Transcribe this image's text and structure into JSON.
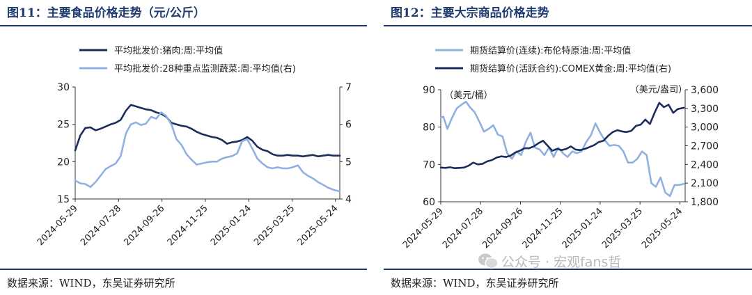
{
  "left": {
    "title": "图11：主要食品价格走势（元/公斤）",
    "source": "数据来源：WIND，东吴证券研究所",
    "chart_data": {
      "type": "line",
      "x_ticks": [
        "2024-05-29",
        "2024-07-28",
        "2024-09-26",
        "2024-11-25",
        "2025-01-24",
        "2025-03-25",
        "2025-05-24"
      ],
      "x_range": [
        "2024-05-29",
        "2025-05-30"
      ],
      "y_left": {
        "lim": [
          15,
          30
        ],
        "ticks": [
          "15",
          "20",
          "25",
          "30"
        ]
      },
      "y_right": {
        "lim": [
          4,
          7
        ],
        "ticks": [
          "4",
          "5",
          "6",
          "7"
        ]
      },
      "series": [
        {
          "name": "平均批发价:猪肉:周:平均值",
          "axis": "left",
          "color": "#1b2d5a",
          "points": [
            [
              "2024-05-29",
              21.5
            ],
            [
              "2024-06-05",
              23.5
            ],
            [
              "2024-06-12",
              24.5
            ],
            [
              "2024-06-19",
              24.6
            ],
            [
              "2024-06-26",
              24.2
            ],
            [
              "2024-07-03",
              24.4
            ],
            [
              "2024-07-10",
              24.7
            ],
            [
              "2024-07-17",
              25.0
            ],
            [
              "2024-07-24",
              25.2
            ],
            [
              "2024-07-31",
              25.6
            ],
            [
              "2024-08-07",
              26.8
            ],
            [
              "2024-08-14",
              27.6
            ],
            [
              "2024-08-21",
              27.4
            ],
            [
              "2024-08-28",
              27.2
            ],
            [
              "2024-09-04",
              27.0
            ],
            [
              "2024-09-11",
              26.9
            ],
            [
              "2024-09-18",
              26.6
            ],
            [
              "2024-09-25",
              26.4
            ],
            [
              "2024-10-02",
              26.0
            ],
            [
              "2024-10-09",
              25.2
            ],
            [
              "2024-10-16",
              25.0
            ],
            [
              "2024-10-23",
              24.8
            ],
            [
              "2024-10-30",
              24.7
            ],
            [
              "2024-11-06",
              24.4
            ],
            [
              "2024-11-13",
              24.0
            ],
            [
              "2024-11-20",
              23.7
            ],
            [
              "2024-11-27",
              23.5
            ],
            [
              "2024-12-04",
              23.3
            ],
            [
              "2024-12-11",
              23.2
            ],
            [
              "2024-12-18",
              22.9
            ],
            [
              "2024-12-25",
              22.4
            ],
            [
              "2025-01-01",
              22.6
            ],
            [
              "2025-01-08",
              22.7
            ],
            [
              "2025-01-15",
              22.9
            ],
            [
              "2025-01-22",
              23.3
            ],
            [
              "2025-01-29",
              22.8
            ],
            [
              "2025-02-05",
              22.0
            ],
            [
              "2025-02-12",
              21.6
            ],
            [
              "2025-02-19",
              21.4
            ],
            [
              "2025-02-26",
              21.0
            ],
            [
              "2025-03-05",
              20.8
            ],
            [
              "2025-03-12",
              20.8
            ],
            [
              "2025-03-19",
              20.9
            ],
            [
              "2025-03-26",
              20.8
            ],
            [
              "2025-04-02",
              20.8
            ],
            [
              "2025-04-09",
              20.7
            ],
            [
              "2025-04-16",
              20.8
            ],
            [
              "2025-04-23",
              20.9
            ],
            [
              "2025-04-30",
              20.7
            ],
            [
              "2025-05-07",
              20.8
            ],
            [
              "2025-05-14",
              20.9
            ],
            [
              "2025-05-21",
              20.8
            ],
            [
              "2025-05-30",
              20.8
            ]
          ]
        },
        {
          "name": "平均批发价:28种重点监测蔬菜:周:平均值(右)",
          "axis": "right",
          "color": "#8fb0e0",
          "points": [
            [
              "2024-05-29",
              4.5
            ],
            [
              "2024-06-05",
              4.42
            ],
            [
              "2024-06-12",
              4.4
            ],
            [
              "2024-06-19",
              4.32
            ],
            [
              "2024-06-26",
              4.45
            ],
            [
              "2024-07-03",
              4.62
            ],
            [
              "2024-07-10",
              4.8
            ],
            [
              "2024-07-17",
              4.88
            ],
            [
              "2024-07-24",
              4.95
            ],
            [
              "2024-07-31",
              5.15
            ],
            [
              "2024-08-07",
              5.75
            ],
            [
              "2024-08-14",
              6.0
            ],
            [
              "2024-08-21",
              6.05
            ],
            [
              "2024-08-28",
              5.98
            ],
            [
              "2024-09-04",
              6.02
            ],
            [
              "2024-09-11",
              6.2
            ],
            [
              "2024-09-18",
              6.15
            ],
            [
              "2024-09-25",
              6.32
            ],
            [
              "2024-10-02",
              6.22
            ],
            [
              "2024-10-09",
              6.0
            ],
            [
              "2024-10-16",
              5.6
            ],
            [
              "2024-10-23",
              5.45
            ],
            [
              "2024-10-30",
              5.2
            ],
            [
              "2024-11-06",
              5.05
            ],
            [
              "2024-11-13",
              4.92
            ],
            [
              "2024-11-20",
              4.95
            ],
            [
              "2024-11-27",
              4.98
            ],
            [
              "2024-12-04",
              5.0
            ],
            [
              "2024-12-11",
              5.0
            ],
            [
              "2024-12-18",
              5.08
            ],
            [
              "2024-12-25",
              5.12
            ],
            [
              "2025-01-01",
              5.15
            ],
            [
              "2025-01-08",
              5.22
            ],
            [
              "2025-01-15",
              5.55
            ],
            [
              "2025-01-22",
              5.6
            ],
            [
              "2025-01-29",
              5.35
            ],
            [
              "2025-02-05",
              5.08
            ],
            [
              "2025-02-12",
              4.95
            ],
            [
              "2025-02-19",
              4.85
            ],
            [
              "2025-02-26",
              4.82
            ],
            [
              "2025-03-05",
              4.85
            ],
            [
              "2025-03-12",
              4.82
            ],
            [
              "2025-03-19",
              4.82
            ],
            [
              "2025-03-26",
              4.85
            ],
            [
              "2025-04-02",
              4.9
            ],
            [
              "2025-04-09",
              4.72
            ],
            [
              "2025-04-16",
              4.62
            ],
            [
              "2025-04-23",
              4.55
            ],
            [
              "2025-04-30",
              4.45
            ],
            [
              "2025-05-07",
              4.38
            ],
            [
              "2025-05-14",
              4.3
            ],
            [
              "2025-05-21",
              4.25
            ],
            [
              "2025-05-30",
              4.2
            ]
          ]
        }
      ]
    }
  },
  "right": {
    "title": "图12：主要大宗商品价格走势",
    "source": "数据来源：WIND，东吴证券研究所",
    "chart_data": {
      "type": "line",
      "x_ticks": [
        "2024-05-29",
        "2024-07-28",
        "2024-09-26",
        "2024-11-25",
        "2025-01-24",
        "2025-03-25",
        "2025-05-24"
      ],
      "x_range": [
        "2024-05-29",
        "2025-06-01"
      ],
      "y_left": {
        "lim": [
          60,
          90
        ],
        "ticks": [
          "60",
          "70",
          "80",
          "90"
        ],
        "unit": "（美元/桶）"
      },
      "y_right": {
        "lim": [
          1800,
          3600
        ],
        "ticks": [
          "1,800",
          "2,100",
          "2,400",
          "2,700",
          "3,000",
          "3,300",
          "3,600"
        ],
        "unit": "（美元/盎司）"
      },
      "series": [
        {
          "name": "期货结算价(连续):布伦特原油:周:平均值",
          "axis": "left",
          "color": "#8fb0e0",
          "points": [
            [
              "2024-05-29",
              82.5
            ],
            [
              "2024-06-02",
              82.8
            ],
            [
              "2024-06-08",
              79.5
            ],
            [
              "2024-06-15",
              82.5
            ],
            [
              "2024-06-22",
              85.0
            ],
            [
              "2024-06-29",
              86.0
            ],
            [
              "2024-07-06",
              86.8
            ],
            [
              "2024-07-12",
              85.3
            ],
            [
              "2024-07-19",
              84.0
            ],
            [
              "2024-07-26",
              81.5
            ],
            [
              "2024-08-02",
              78.8
            ],
            [
              "2024-08-09",
              79.5
            ],
            [
              "2024-08-16",
              80.5
            ],
            [
              "2024-08-23",
              78.0
            ],
            [
              "2024-08-30",
              77.5
            ],
            [
              "2024-09-06",
              73.0
            ],
            [
              "2024-09-13",
              71.5
            ],
            [
              "2024-09-20",
              73.5
            ],
            [
              "2024-09-27",
              72.5
            ],
            [
              "2024-10-04",
              76.0
            ],
            [
              "2024-10-11",
              78.5
            ],
            [
              "2024-10-18",
              74.5
            ],
            [
              "2024-10-25",
              74.0
            ],
            [
              "2024-11-01",
              72.5
            ],
            [
              "2024-11-08",
              74.5
            ],
            [
              "2024-11-15",
              72.0
            ],
            [
              "2024-11-22",
              74.5
            ],
            [
              "2024-11-29",
              73.0
            ],
            [
              "2024-12-06",
              72.0
            ],
            [
              "2024-12-13",
              73.5
            ],
            [
              "2024-12-20",
              73.0
            ],
            [
              "2024-12-27",
              73.5
            ],
            [
              "2025-01-03",
              76.0
            ],
            [
              "2025-01-10",
              77.8
            ],
            [
              "2025-01-17",
              81.0
            ],
            [
              "2025-01-24",
              78.5
            ],
            [
              "2025-01-31",
              76.5
            ],
            [
              "2025-02-07",
              75.0
            ],
            [
              "2025-02-14",
              75.2
            ],
            [
              "2025-02-21",
              75.0
            ],
            [
              "2025-02-28",
              73.5
            ],
            [
              "2025-03-07",
              70.5
            ],
            [
              "2025-03-14",
              70.5
            ],
            [
              "2025-03-21",
              71.5
            ],
            [
              "2025-03-28",
              73.5
            ],
            [
              "2025-04-04",
              72.5
            ],
            [
              "2025-04-11",
              65.0
            ],
            [
              "2025-04-18",
              64.0
            ],
            [
              "2025-04-25",
              66.5
            ],
            [
              "2025-05-02",
              62.5
            ],
            [
              "2025-05-09",
              61.5
            ],
            [
              "2025-05-16",
              64.5
            ],
            [
              "2025-05-23",
              64.5
            ],
            [
              "2025-05-30",
              64.8
            ]
          ]
        },
        {
          "name": "期货结算价(活跃合约):COMEX黄金:周:平均值(右)",
          "axis": "right",
          "color": "#1b2d5a",
          "points": [
            [
              "2024-05-29",
              2350
            ],
            [
              "2024-06-05",
              2345
            ],
            [
              "2024-06-12",
              2355
            ],
            [
              "2024-06-19",
              2340
            ],
            [
              "2024-06-26",
              2345
            ],
            [
              "2024-07-03",
              2350
            ],
            [
              "2024-07-10",
              2380
            ],
            [
              "2024-07-17",
              2430
            ],
            [
              "2024-07-24",
              2400
            ],
            [
              "2024-07-31",
              2410
            ],
            [
              "2024-08-07",
              2450
            ],
            [
              "2024-08-14",
              2470
            ],
            [
              "2024-08-21",
              2510
            ],
            [
              "2024-08-28",
              2530
            ],
            [
              "2024-09-04",
              2520
            ],
            [
              "2024-09-11",
              2540
            ],
            [
              "2024-09-18",
              2590
            ],
            [
              "2024-09-25",
              2620
            ],
            [
              "2024-10-02",
              2660
            ],
            [
              "2024-10-09",
              2660
            ],
            [
              "2024-10-16",
              2690
            ],
            [
              "2024-10-23",
              2740
            ],
            [
              "2024-10-30",
              2780
            ],
            [
              "2024-11-06",
              2700
            ],
            [
              "2024-11-13",
              2620
            ],
            [
              "2024-11-20",
              2650
            ],
            [
              "2024-11-27",
              2630
            ],
            [
              "2024-12-04",
              2650
            ],
            [
              "2024-12-11",
              2690
            ],
            [
              "2024-12-18",
              2640
            ],
            [
              "2024-12-25",
              2630
            ],
            [
              "2025-01-01",
              2650
            ],
            [
              "2025-01-08",
              2680
            ],
            [
              "2025-01-15",
              2710
            ],
            [
              "2025-01-22",
              2760
            ],
            [
              "2025-01-29",
              2780
            ],
            [
              "2025-02-05",
              2860
            ],
            [
              "2025-02-12",
              2920
            ],
            [
              "2025-02-19",
              2950
            ],
            [
              "2025-02-26",
              2930
            ],
            [
              "2025-03-05",
              2920
            ],
            [
              "2025-03-12",
              2940
            ],
            [
              "2025-03-19",
              3020
            ],
            [
              "2025-03-26",
              3040
            ],
            [
              "2025-04-02",
              3120
            ],
            [
              "2025-04-09",
              3050
            ],
            [
              "2025-04-16",
              3230
            ],
            [
              "2025-04-23",
              3390
            ],
            [
              "2025-04-30",
              3320
            ],
            [
              "2025-05-07",
              3360
            ],
            [
              "2025-05-14",
              3230
            ],
            [
              "2025-05-21",
              3290
            ],
            [
              "2025-05-30",
              3310
            ]
          ]
        }
      ]
    }
  },
  "watermark": {
    "text": "公众号 · 宏观fans哲",
    "icon": "wechat-icon"
  }
}
